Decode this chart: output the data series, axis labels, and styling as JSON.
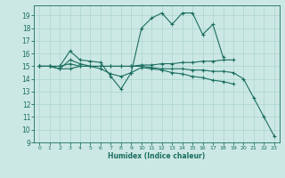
{
  "xlabel": "Humidex (Indice chaleur)",
  "ylabel": "",
  "bg_color": "#cce8e4",
  "grid_color": "#b0d8d0",
  "line_color": "#1a6e60",
  "xlim": [
    -0.5,
    23.5
  ],
  "ylim": [
    9,
    19.8
  ],
  "yticks": [
    9,
    10,
    11,
    12,
    13,
    14,
    15,
    16,
    17,
    18,
    19
  ],
  "xticks": [
    0,
    1,
    2,
    3,
    4,
    5,
    6,
    7,
    8,
    9,
    10,
    11,
    12,
    13,
    14,
    15,
    16,
    17,
    18,
    19,
    20,
    21,
    22,
    23
  ],
  "series": [
    {
      "x": [
        0,
        1,
        2,
        3,
        4,
        5,
        6,
        7,
        8,
        9,
        10,
        11,
        12,
        13,
        14,
        15,
        16,
        17,
        18
      ],
      "y": [
        15.0,
        15.0,
        15.0,
        16.2,
        15.5,
        15.4,
        15.3,
        14.2,
        13.2,
        14.5,
        18.0,
        18.8,
        19.2,
        18.3,
        19.2,
        19.2,
        17.5,
        18.3,
        15.7
      ]
    },
    {
      "x": [
        0,
        1,
        2,
        3,
        4,
        5,
        6,
        7,
        8,
        9,
        10,
        11,
        12,
        13,
        14,
        15,
        16,
        17,
        18,
        19
      ],
      "y": [
        15.0,
        15.0,
        14.8,
        14.8,
        15.0,
        15.0,
        15.0,
        15.0,
        15.0,
        15.0,
        15.1,
        15.1,
        15.2,
        15.2,
        15.3,
        15.3,
        15.4,
        15.4,
        15.5,
        15.5
      ]
    },
    {
      "x": [
        0,
        1,
        2,
        3,
        4,
        5,
        6,
        7,
        8,
        9,
        10,
        11,
        12,
        13,
        14,
        15,
        16,
        17,
        18,
        19
      ],
      "y": [
        15.0,
        15.0,
        14.8,
        15.5,
        15.2,
        15.0,
        14.8,
        14.4,
        14.2,
        14.5,
        14.9,
        14.8,
        14.7,
        14.5,
        14.4,
        14.2,
        14.1,
        13.9,
        13.8,
        13.6
      ]
    },
    {
      "x": [
        0,
        1,
        2,
        3,
        4,
        5,
        6,
        7,
        8,
        9,
        10,
        11,
        12,
        13,
        14,
        15,
        16,
        17,
        18,
        19,
        20,
        21,
        22,
        23
      ],
      "y": [
        15.0,
        15.0,
        15.0,
        15.2,
        15.0,
        15.0,
        15.0,
        15.0,
        15.0,
        15.0,
        15.0,
        14.9,
        14.8,
        14.8,
        14.8,
        14.7,
        14.7,
        14.6,
        14.6,
        14.5,
        14.0,
        12.5,
        11.0,
        9.5
      ]
    }
  ]
}
